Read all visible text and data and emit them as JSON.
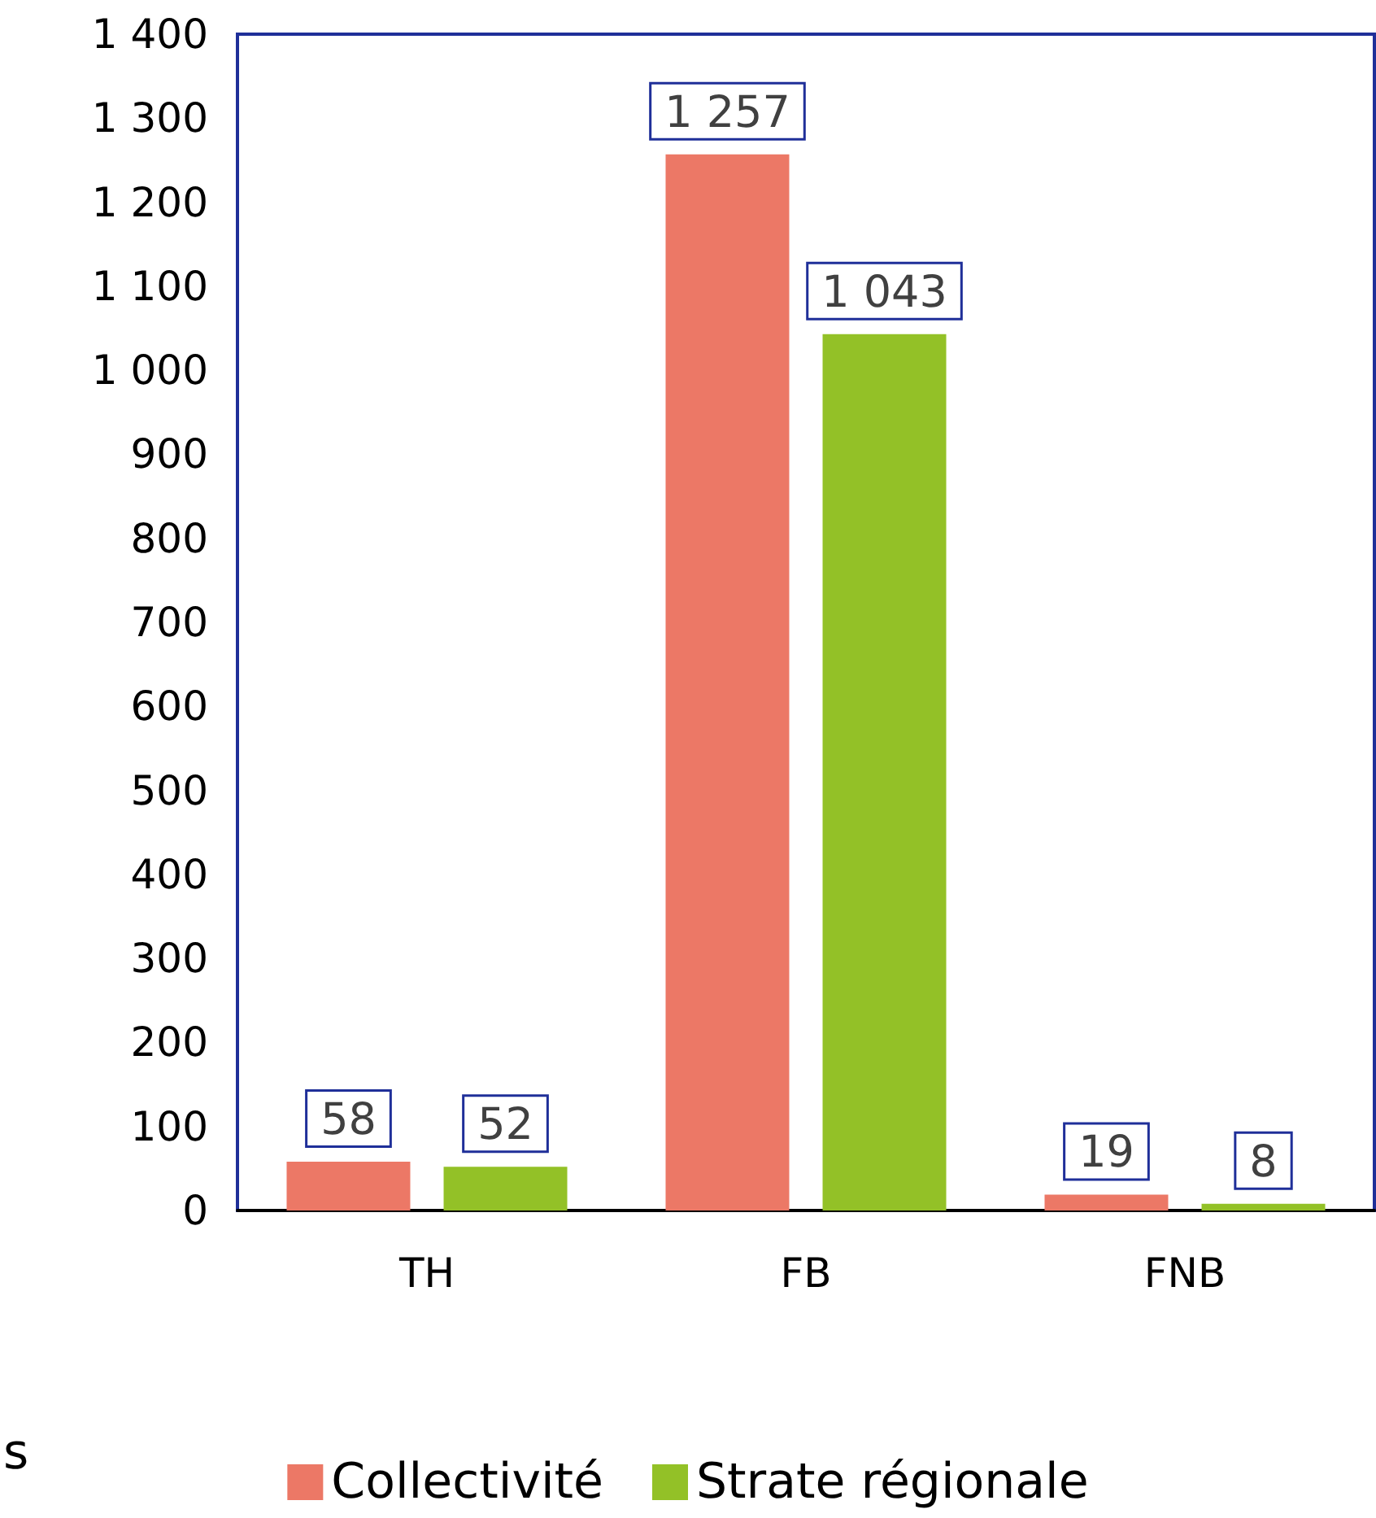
{
  "chart_data": {
    "type": "bar",
    "categories": [
      "TH",
      "FB",
      "FNB"
    ],
    "series": [
      {
        "name": "Collectivité",
        "color": "#ec7866",
        "values": [
          58,
          1257,
          19
        ],
        "value_labels": [
          "58",
          "1 257",
          "19"
        ]
      },
      {
        "name": "Strate régionale",
        "color": "#93c127",
        "values": [
          52,
          1043,
          8
        ],
        "value_labels": [
          "52",
          "1 043",
          "8"
        ]
      }
    ],
    "ylim": [
      0,
      1400
    ],
    "yticks": [
      0,
      100,
      200,
      300,
      400,
      500,
      600,
      700,
      800,
      900,
      {
        "value": 1000,
        "label": "1 000"
      },
      {
        "value": 1100,
        "label": "1 100"
      },
      {
        "value": 1200,
        "label": "1 200"
      },
      {
        "value": 1300,
        "label": "1 300"
      },
      {
        "value": 1400,
        "label": "1 400"
      }
    ],
    "grid": false,
    "legend": "bottom",
    "annotations": [
      "s"
    ]
  }
}
